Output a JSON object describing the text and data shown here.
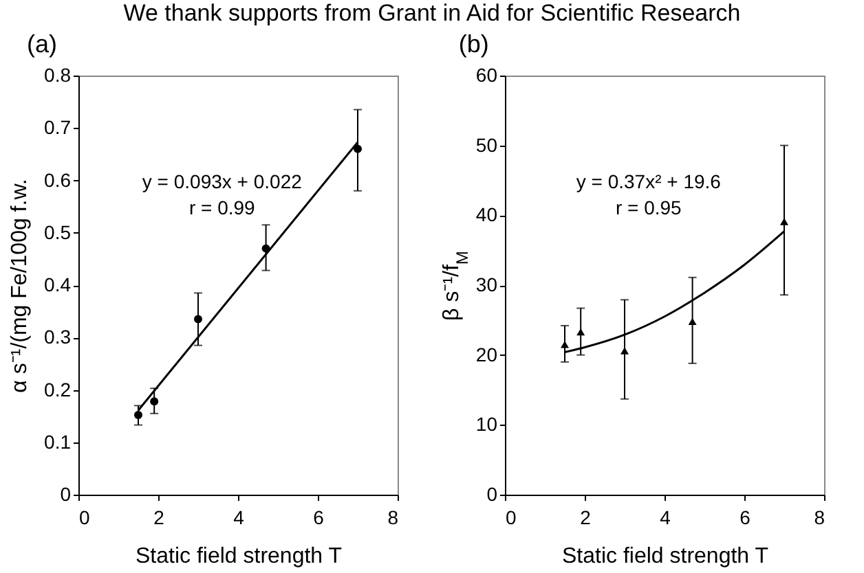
{
  "chart_data": [
    {
      "type": "other",
      "annotations": [
        "We thank supports from Grant in Aid for Scientific Research"
      ]
    },
    {
      "type": "scatter",
      "title": "(a)",
      "xlabel": "Static field strength    T",
      "ylabel": "α s⁻¹/(mg Fe/100g f.w.",
      "annotations": [
        "y = 0.093x + 0.022",
        "r = 0.99"
      ],
      "xlim": [
        0,
        8
      ],
      "xticks": [
        0,
        2,
        4,
        6,
        8
      ],
      "ylim": [
        0,
        0.8
      ],
      "yticks": [
        0,
        0.1,
        0.2,
        0.3,
        0.4,
        0.5,
        0.6,
        0.7,
        0.8
      ],
      "series": [
        {
          "type": "scatter",
          "color": "#000000",
          "marker": "circle",
          "x": [
            1.5,
            1.9,
            3.0,
            4.7,
            7.0
          ],
          "values": [
            0.152,
            0.178,
            0.335,
            0.47,
            0.66
          ],
          "errors": [
            [
              0.133,
              0.17
            ],
            [
              0.155,
              0.203
            ],
            [
              0.285,
              0.385
            ],
            [
              0.428,
              0.515
            ],
            [
              0.58,
              0.735
            ]
          ]
        },
        {
          "type": "line",
          "color": "#000000",
          "x": [
            1.5,
            7.0
          ],
          "values": [
            0.161,
            0.673
          ]
        }
      ]
    },
    {
      "type": "scatter",
      "title": "(b)",
      "xlabel": "Static field strength    T",
      "ylabel": "β s⁻¹/f$_{M}$",
      "annotations": [
        "y = 0.37x² + 19.6",
        "r = 0.95"
      ],
      "xlim": [
        0,
        8
      ],
      "xticks": [
        0,
        2,
        4,
        6,
        8
      ],
      "ylim": [
        0,
        60
      ],
      "yticks": [
        0,
        10,
        20,
        30,
        40,
        50,
        60
      ],
      "series": [
        {
          "type": "scatter",
          "color": "#000000",
          "marker": "triangle",
          "x": [
            1.5,
            1.9,
            3.0,
            4.7,
            7.0
          ],
          "values": [
            21.5,
            23.3,
            20.6,
            24.8,
            39.1
          ],
          "errors": [
            [
              19,
              24.2
            ],
            [
              20,
              26.7
            ],
            [
              13.7,
              27.9
            ],
            [
              18.8,
              31.1
            ],
            [
              28.6,
              50
            ]
          ]
        },
        {
          "type": "line",
          "color": "#000000",
          "x": [
            1.5,
            2,
            3,
            4,
            5,
            6,
            7
          ],
          "values": [
            20.4,
            21.1,
            22.9,
            25.5,
            28.9,
            32.9,
            37.7
          ]
        }
      ]
    }
  ]
}
